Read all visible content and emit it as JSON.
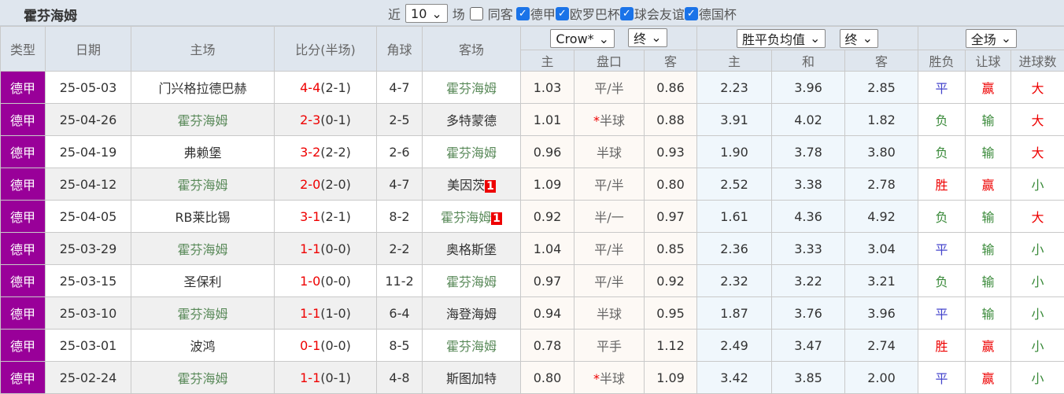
{
  "title": "霍芬海姆",
  "filters": {
    "recent_prefix": "近",
    "recent_count": "10",
    "recent_suffix": "场",
    "same_label": "同客",
    "same_checked": false,
    "competitions": [
      {
        "label": "德甲",
        "checked": true
      },
      {
        "label": "欧罗巴杯",
        "checked": true
      },
      {
        "label": "球会友谊",
        "checked": true
      },
      {
        "label": "德国杯",
        "checked": true
      }
    ]
  },
  "headers": {
    "type": "类型",
    "date": "日期",
    "home": "主场",
    "score": "比分(半场)",
    "corner": "角球",
    "away": "客场",
    "odds_company": "Crow*",
    "odds_stage": "终",
    "avg_type": "胜平负均值",
    "avg_stage": "终",
    "period": "全场",
    "odds_cols": [
      "主",
      "盘口",
      "客"
    ],
    "avg_cols": [
      "主",
      "和",
      "客"
    ],
    "res_cols": [
      "胜负",
      "让球",
      "进球数"
    ]
  },
  "colors": {
    "league": "#990099",
    "team": "#5a8a5a",
    "score": "#ee0000"
  },
  "rows": [
    {
      "type": "德甲",
      "date": "25-05-03",
      "home": "门兴格拉德巴赫",
      "home_team": false,
      "ft": "4-4",
      "ht": "(2-1)",
      "corner": "4-7",
      "away": "霍芬海姆",
      "away_team": true,
      "away_badge": "",
      "o1": "1.03",
      "line": "平/半",
      "star": "",
      "o2": "0.86",
      "a1": "2.23",
      "a2": "3.96",
      "a3": "2.85",
      "r1": "平",
      "r2": "赢",
      "r3": "大"
    },
    {
      "type": "德甲",
      "date": "25-04-26",
      "home": "霍芬海姆",
      "home_team": true,
      "ft": "2-3",
      "ht": "(0-1)",
      "corner": "2-5",
      "away": "多特蒙德",
      "away_team": false,
      "away_badge": "",
      "o1": "1.01",
      "line": "半球",
      "star": "*",
      "o2": "0.88",
      "a1": "3.91",
      "a2": "4.02",
      "a3": "1.82",
      "r1": "负",
      "r2": "输",
      "r3": "大"
    },
    {
      "type": "德甲",
      "date": "25-04-19",
      "home": "弗赖堡",
      "home_team": false,
      "ft": "3-2",
      "ht": "(2-2)",
      "corner": "2-6",
      "away": "霍芬海姆",
      "away_team": true,
      "away_badge": "",
      "o1": "0.96",
      "line": "半球",
      "star": "",
      "o2": "0.93",
      "a1": "1.90",
      "a2": "3.78",
      "a3": "3.80",
      "r1": "负",
      "r2": "输",
      "r3": "大"
    },
    {
      "type": "德甲",
      "date": "25-04-12",
      "home": "霍芬海姆",
      "home_team": true,
      "ft": "2-0",
      "ht": "(2-0)",
      "corner": "4-7",
      "away": "美因茨",
      "away_team": false,
      "away_badge": "1",
      "o1": "1.09",
      "line": "平/半",
      "star": "",
      "o2": "0.80",
      "a1": "2.52",
      "a2": "3.38",
      "a3": "2.78",
      "r1": "胜",
      "r2": "赢",
      "r3": "小"
    },
    {
      "type": "德甲",
      "date": "25-04-05",
      "home": "RB莱比锡",
      "home_team": false,
      "ft": "3-1",
      "ht": "(2-1)",
      "corner": "8-2",
      "away": "霍芬海姆",
      "away_team": true,
      "away_badge": "1",
      "o1": "0.92",
      "line": "半/一",
      "star": "",
      "o2": "0.97",
      "a1": "1.61",
      "a2": "4.36",
      "a3": "4.92",
      "r1": "负",
      "r2": "输",
      "r3": "大"
    },
    {
      "type": "德甲",
      "date": "25-03-29",
      "home": "霍芬海姆",
      "home_team": true,
      "ft": "1-1",
      "ht": "(0-0)",
      "corner": "2-2",
      "away": "奥格斯堡",
      "away_team": false,
      "away_badge": "",
      "o1": "1.04",
      "line": "平/半",
      "star": "",
      "o2": "0.85",
      "a1": "2.36",
      "a2": "3.33",
      "a3": "3.04",
      "r1": "平",
      "r2": "输",
      "r3": "小"
    },
    {
      "type": "德甲",
      "date": "25-03-15",
      "home": "圣保利",
      "home_team": false,
      "ft": "1-0",
      "ht": "(0-0)",
      "corner": "11-2",
      "away": "霍芬海姆",
      "away_team": true,
      "away_badge": "",
      "o1": "0.97",
      "line": "平/半",
      "star": "",
      "o2": "0.92",
      "a1": "2.32",
      "a2": "3.22",
      "a3": "3.21",
      "r1": "负",
      "r2": "输",
      "r3": "小"
    },
    {
      "type": "德甲",
      "date": "25-03-10",
      "home": "霍芬海姆",
      "home_team": true,
      "ft": "1-1",
      "ht": "(1-0)",
      "corner": "6-4",
      "away": "海登海姆",
      "away_team": false,
      "away_badge": "",
      "o1": "0.94",
      "line": "半球",
      "star": "",
      "o2": "0.95",
      "a1": "1.87",
      "a2": "3.76",
      "a3": "3.96",
      "r1": "平",
      "r2": "输",
      "r3": "小"
    },
    {
      "type": "德甲",
      "date": "25-03-01",
      "home": "波鸿",
      "home_team": false,
      "ft": "0-1",
      "ht": "(0-0)",
      "corner": "8-5",
      "away": "霍芬海姆",
      "away_team": true,
      "away_badge": "",
      "o1": "0.78",
      "line": "平手",
      "star": "",
      "o2": "1.12",
      "a1": "2.49",
      "a2": "3.47",
      "a3": "2.74",
      "r1": "胜",
      "r2": "赢",
      "r3": "小"
    },
    {
      "type": "德甲",
      "date": "25-02-24",
      "home": "霍芬海姆",
      "home_team": true,
      "ft": "1-1",
      "ht": "(0-1)",
      "corner": "4-8",
      "away": "斯图加特",
      "away_team": false,
      "away_badge": "",
      "o1": "0.80",
      "line": "半球",
      "star": "*",
      "o2": "1.09",
      "a1": "3.42",
      "a2": "3.85",
      "a3": "2.00",
      "r1": "平",
      "r2": "赢",
      "r3": "小"
    }
  ]
}
